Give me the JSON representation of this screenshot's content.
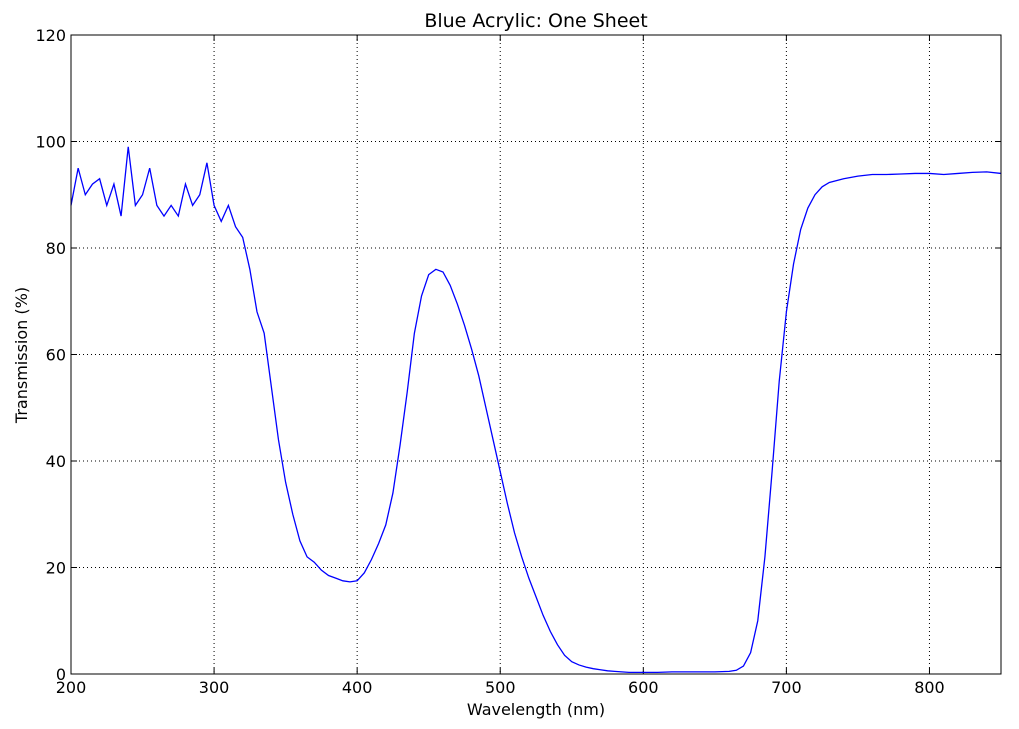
{
  "chart_data": {
    "type": "line",
    "title": "Blue Acrylic: One Sheet",
    "x_label": "Wavelength (nm)",
    "y_label": "Transmission (%)",
    "x": [
      200,
      205,
      210,
      215,
      220,
      225,
      230,
      235,
      240,
      245,
      250,
      255,
      260,
      265,
      270,
      275,
      280,
      285,
      290,
      295,
      300,
      305,
      310,
      315,
      320,
      325,
      330,
      335,
      340,
      345,
      350,
      355,
      360,
      365,
      370,
      375,
      380,
      385,
      390,
      395,
      400,
      405,
      410,
      415,
      420,
      425,
      430,
      435,
      440,
      445,
      450,
      455,
      460,
      465,
      470,
      475,
      480,
      485,
      490,
      495,
      500,
      505,
      510,
      515,
      520,
      525,
      530,
      535,
      540,
      545,
      550,
      555,
      560,
      565,
      570,
      575,
      580,
      590,
      600,
      610,
      620,
      630,
      640,
      650,
      660,
      665,
      670,
      675,
      680,
      685,
      690,
      695,
      700,
      705,
      710,
      715,
      720,
      725,
      730,
      740,
      750,
      760,
      770,
      780,
      790,
      800,
      810,
      820,
      830,
      840,
      850
    ],
    "series": [
      {
        "name": "Transmission",
        "color": "#0000ff",
        "values": [
          88,
          95,
          90,
          92,
          93,
          88,
          92,
          86,
          99,
          88,
          90,
          95,
          88,
          86,
          88,
          86,
          92,
          88,
          90,
          96,
          88,
          85,
          88,
          84,
          82,
          76,
          68,
          64,
          54,
          44,
          36,
          30,
          25,
          22,
          21,
          19.5,
          18.5,
          18,
          17.5,
          17.3,
          17.5,
          19,
          21.5,
          24.5,
          28,
          34,
          43,
          53,
          64,
          71,
          75,
          76,
          75.5,
          73,
          69.5,
          65.5,
          61,
          56,
          50,
          44,
          38,
          32,
          26.5,
          22,
          18,
          14.5,
          11,
          8,
          5.5,
          3.5,
          2.3,
          1.7,
          1.3,
          1.0,
          0.8,
          0.6,
          0.5,
          0.3,
          0.3,
          0.3,
          0.4,
          0.4,
          0.4,
          0.4,
          0.5,
          0.7,
          1.5,
          4,
          10,
          22,
          38,
          55,
          68,
          77,
          83.5,
          87.5,
          90,
          91.5,
          92.3,
          93,
          93.5,
          93.8,
          93.8,
          93.9,
          94,
          94,
          93.8,
          94,
          94.2,
          94.3,
          94
        ]
      }
    ],
    "xlim": [
      200,
      850
    ],
    "ylim": [
      0,
      120
    ],
    "xticks": [
      200,
      300,
      400,
      500,
      600,
      700,
      800
    ],
    "yticks": [
      0,
      20,
      40,
      60,
      80,
      100,
      120
    ],
    "grid": true
  }
}
